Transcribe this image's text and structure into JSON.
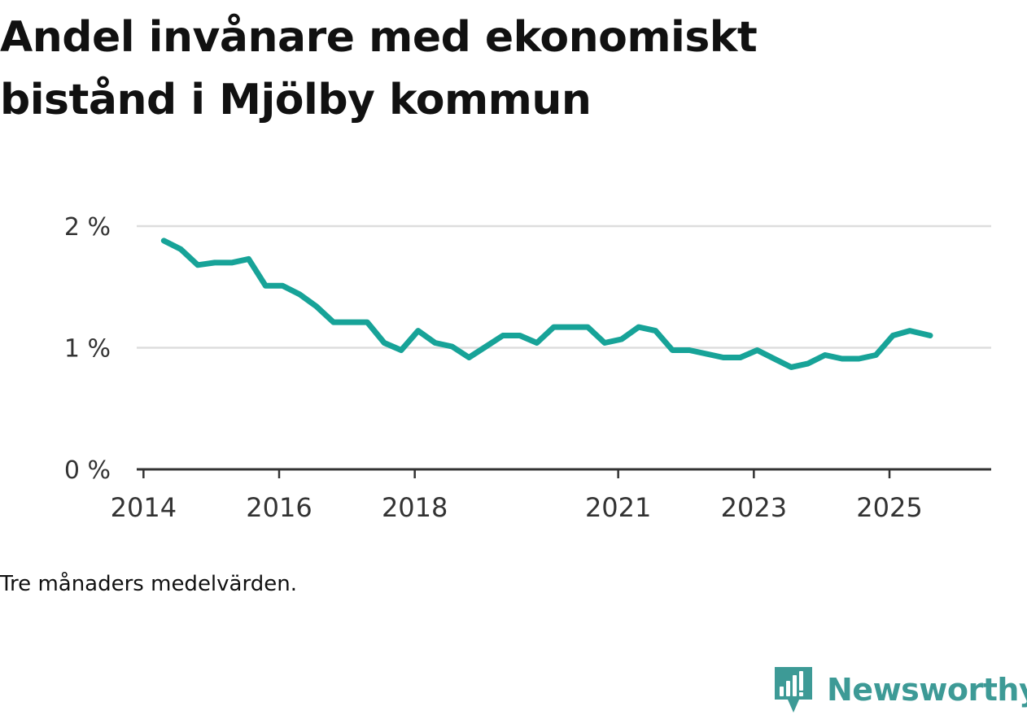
{
  "title_line1": "Andel invånare med ekonomiskt",
  "title_line2": "bistånd i Mjölby kommun",
  "note": "Tre månaders medelvärden.",
  "brand": {
    "name": "Newsworthy",
    "color": "#3d9a96"
  },
  "chart_data": {
    "type": "line",
    "title": "Andel invånare med ekonomiskt bistånd i Mjölby kommun",
    "xlabel": "",
    "ylabel": "",
    "ylim": [
      0,
      2
    ],
    "yticks": [
      {
        "value": 0,
        "label": "0 %"
      },
      {
        "value": 1,
        "label": "1 %"
      },
      {
        "value": 2,
        "label": "2 %"
      }
    ],
    "xlim": [
      2013.9,
      2026.5
    ],
    "xticks": [
      {
        "value": 2014,
        "label": "2014"
      },
      {
        "value": 2016,
        "label": "2016"
      },
      {
        "value": 2018,
        "label": "2018"
      },
      {
        "value": 2021,
        "label": "2021"
      },
      {
        "value": 2023,
        "label": "2023"
      },
      {
        "value": 2025,
        "label": "2025"
      }
    ],
    "grid": true,
    "line_color": "#17a398",
    "series": [
      {
        "name": "Andel invånare med ekonomiskt bistånd",
        "x": [
          2014.3,
          2014.55,
          2014.8,
          2015.05,
          2015.3,
          2015.55,
          2015.8,
          2016.05,
          2016.3,
          2016.55,
          2016.8,
          2017.05,
          2017.3,
          2017.55,
          2017.8,
          2018.05,
          2018.3,
          2018.55,
          2018.8,
          2019.05,
          2019.3,
          2019.55,
          2019.8,
          2020.05,
          2020.3,
          2020.55,
          2020.8,
          2021.05,
          2021.3,
          2021.55,
          2021.8,
          2022.05,
          2022.3,
          2022.55,
          2022.8,
          2023.05,
          2023.3,
          2023.55,
          2023.8,
          2024.05,
          2024.3,
          2024.55,
          2024.8,
          2025.05,
          2025.3,
          2025.6
        ],
        "values": [
          1.88,
          1.81,
          1.68,
          1.7,
          1.7,
          1.73,
          1.51,
          1.51,
          1.44,
          1.34,
          1.21,
          1.21,
          1.21,
          1.04,
          0.98,
          1.14,
          1.04,
          1.01,
          0.92,
          1.01,
          1.1,
          1.1,
          1.04,
          1.17,
          1.17,
          1.17,
          1.04,
          1.07,
          1.17,
          1.14,
          0.98,
          0.98,
          0.95,
          0.92,
          0.92,
          0.98,
          0.91,
          0.84,
          0.87,
          0.94,
          0.91,
          0.91,
          0.94,
          1.1,
          1.14,
          1.1
        ]
      }
    ]
  }
}
